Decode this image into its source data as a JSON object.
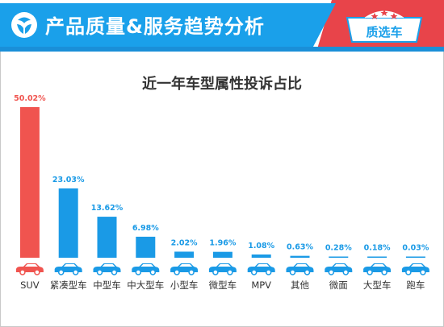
{
  "header": {
    "title": "产品质量&服务趋势分析",
    "badge": "质选车"
  },
  "colors": {
    "header_blue": "#1aa0ea",
    "header_red": "#e8444a",
    "bar_highlight": "#f0544f",
    "bar_default": "#1a9ae6",
    "label_highlight": "#f0544f",
    "label_default": "#1a9ae6"
  },
  "chart_data": {
    "type": "bar",
    "title": "近一年车型属性投诉占比",
    "categories": [
      "SUV",
      "紧凑型车",
      "中型车",
      "中大型车",
      "小型车",
      "微型车",
      "MPV",
      "其他",
      "微面",
      "大型车",
      "跑车"
    ],
    "values": [
      50.02,
      23.03,
      13.62,
      6.98,
      2.02,
      1.96,
      1.08,
      0.63,
      0.28,
      0.18,
      0.03
    ],
    "value_labels": [
      "50.02%",
      "23.03%",
      "13.62%",
      "6.98%",
      "2.02%",
      "1.96%",
      "1.08%",
      "0.63%",
      "0.28%",
      "0.18%",
      "0.03%"
    ],
    "icons": [
      "suv-icon",
      "compact-car-icon",
      "midsize-car-icon",
      "large-midsize-car-icon",
      "small-car-icon",
      "mini-car-icon",
      "mpv-icon",
      "other-car-icon",
      "minivan-icon",
      "large-car-icon",
      "sports-car-icon"
    ],
    "highlight_index": 0,
    "unit": "%",
    "xlabel": "",
    "ylabel": "",
    "grid": false,
    "legend": "none"
  }
}
